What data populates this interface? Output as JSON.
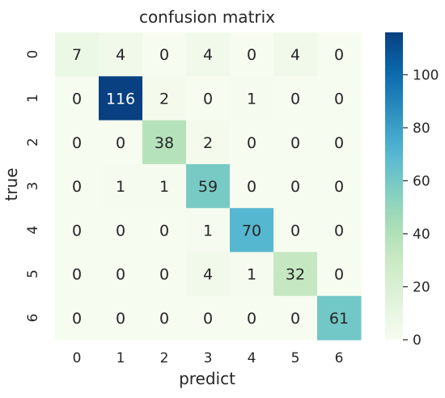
{
  "chart_data": {
    "type": "heatmap",
    "title": "confusion matrix",
    "xlabel": "predict",
    "ylabel": "true",
    "x_categories": [
      "0",
      "1",
      "2",
      "3",
      "4",
      "5",
      "6"
    ],
    "y_categories": [
      "0",
      "1",
      "2",
      "3",
      "4",
      "5",
      "6"
    ],
    "values": [
      [
        7,
        4,
        0,
        4,
        0,
        4,
        0
      ],
      [
        0,
        116,
        2,
        0,
        1,
        0,
        0
      ],
      [
        0,
        0,
        38,
        2,
        0,
        0,
        0
      ],
      [
        0,
        1,
        1,
        59,
        0,
        0,
        0
      ],
      [
        0,
        0,
        0,
        1,
        70,
        0,
        0
      ],
      [
        0,
        0,
        0,
        4,
        1,
        32,
        0
      ],
      [
        0,
        0,
        0,
        0,
        0,
        0,
        61
      ]
    ],
    "colormap": "YlGnBu",
    "color_range": [
      0,
      116
    ],
    "colorbar_ticks": [
      0,
      20,
      40,
      60,
      80,
      100
    ],
    "grid": false
  }
}
